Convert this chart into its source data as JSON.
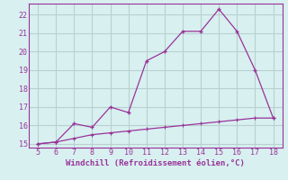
{
  "title": "",
  "xlabel": "Windchill (Refroidissement éolien,°C)",
  "line1_x": [
    5,
    6,
    7,
    8,
    9,
    10,
    11,
    12,
    13,
    14,
    15,
    16,
    17,
    18
  ],
  "line1_y": [
    15.0,
    15.1,
    16.1,
    15.9,
    17.0,
    16.7,
    19.5,
    20.0,
    21.1,
    21.1,
    22.3,
    21.1,
    19.0,
    16.4
  ],
  "line2_x": [
    5,
    6,
    7,
    8,
    9,
    10,
    11,
    12,
    13,
    14,
    15,
    16,
    17,
    18
  ],
  "line2_y": [
    15.0,
    15.1,
    15.3,
    15.5,
    15.6,
    15.7,
    15.8,
    15.9,
    16.0,
    16.1,
    16.2,
    16.3,
    16.4,
    16.4
  ],
  "line_color": "#993399",
  "bg_color": "#d8f0f0",
  "grid_color": "#b8d0d0",
  "xlim_min": 4.5,
  "xlim_max": 18.5,
  "ylim_min": 14.8,
  "ylim_max": 22.6,
  "yticks": [
    15,
    16,
    17,
    18,
    19,
    20,
    21,
    22
  ],
  "xticks": [
    5,
    6,
    7,
    8,
    9,
    10,
    11,
    12,
    13,
    14,
    15,
    16,
    17,
    18
  ],
  "tick_color": "#993399",
  "label_color": "#993399",
  "spine_color": "#993399",
  "marker": "+"
}
